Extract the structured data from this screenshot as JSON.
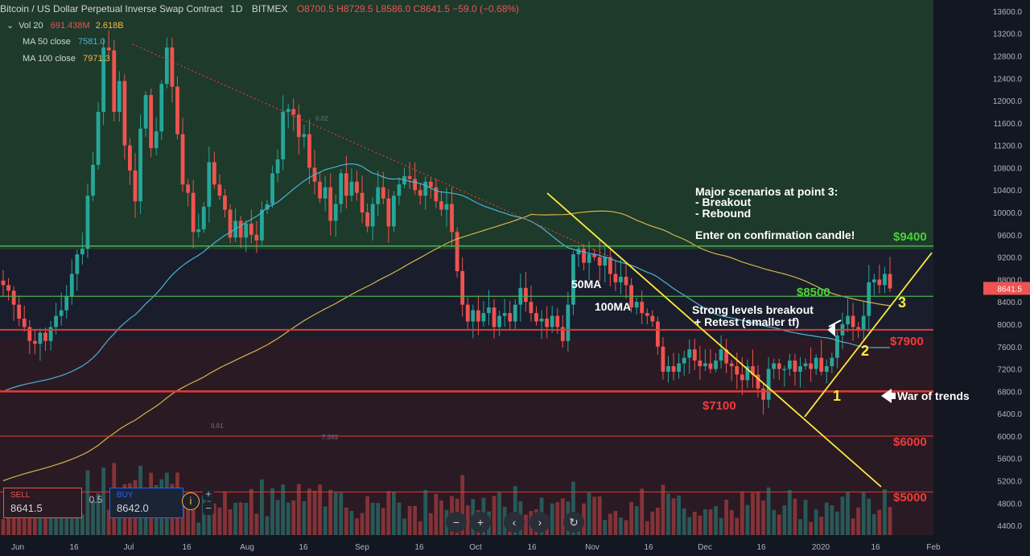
{
  "header": {
    "title": "Bitcoin / US Dollar Perpetual Inverse Swap Contract",
    "interval": "1D",
    "exchange": "BITMEX",
    "ohlc": "O8700.5  H8729.5  L8586.0  C8641.5  −59.0 (−0.68%)"
  },
  "indicators": [
    {
      "label": "Vol 20",
      "value1": "691.438M",
      "value2": "2.618B"
    },
    {
      "label": "MA 50 close",
      "value1": "7581.0"
    },
    {
      "label": "MA 100 close",
      "value1": "7971.3"
    }
  ],
  "trade_panel": {
    "sell_label": "SELL",
    "sell_price": "8641.5",
    "spread": "0.5",
    "buy_label": "BUY",
    "buy_price": "8642.0"
  },
  "price_axis": {
    "ticks": [
      "13600.0",
      "13200.0",
      "12800.0",
      "12400.0",
      "12000.0",
      "11600.0",
      "11200.0",
      "10800.0",
      "10400.0",
      "10000.0",
      "9600.0",
      "9200.0",
      "8800.0",
      "8400.0",
      "8000.0",
      "7600.0",
      "7200.0",
      "6800.0",
      "6400.0",
      "6000.0",
      "5600.0",
      "5200.0",
      "4800.0",
      "4400.0"
    ],
    "last_price": "8641.5"
  },
  "time_axis": {
    "labels": [
      "Jun",
      "16",
      "Jul",
      "16",
      "Aug",
      "16",
      "Sep",
      "16",
      "Oct",
      "16",
      "Nov",
      "16",
      "Dec",
      "16",
      "2020",
      "16",
      "Feb"
    ]
  },
  "annotations": {
    "scenario_title": "Major scenarios at point 3:",
    "scenario_1": "- Breakout",
    "scenario_2": "- Rebound",
    "enter_note": "Enter on confirmation candle!",
    "level_9400": "$9400",
    "level_8500": "$8500",
    "level_7900": "$7900",
    "level_7100": "$7100",
    "level_6000": "$6000",
    "level_5000": "$5000",
    "ma50_label": "50MA",
    "ma100_label": "100MA",
    "breakout_1": "Strong levels breakout",
    "breakout_2": "+ Retest (smaller tf)",
    "point_1": "1",
    "point_2": "2",
    "point_3": "3",
    "war_of_trends": "War of trends",
    "faint_1": "0.01",
    "faint_2": "7.363",
    "faint_3": "0.02"
  },
  "colors": {
    "up": "#26a69a",
    "down": "#ef5350",
    "ma50": "#4bb3d6",
    "ma100": "#d4b44a",
    "support": "#e53935",
    "resistance": "#4caf50",
    "trend": "#ffeb3b"
  },
  "chart_data": {
    "type": "candlestick",
    "title": "Bitcoin / US Dollar Perpetual Inverse Swap Contract",
    "interval": "1D",
    "ylim": [
      4200,
      13800
    ],
    "y_scale": "linear",
    "grid": false,
    "horizontal_levels": [
      9400,
      8500,
      7900,
      6800,
      6000,
      5000
    ],
    "closes": [
      8700,
      8600,
      8350,
      8100,
      7950,
      7700,
      7650,
      7850,
      7700,
      7950,
      8150,
      8250,
      8500,
      8900,
      9250,
      9350,
      10300,
      10850,
      11800,
      12950,
      12900,
      11800,
      12350,
      11200,
      10750,
      10200,
      11500,
      12100,
      11150,
      11450,
      12300,
      12950,
      12250,
      11400,
      10500,
      10350,
      9650,
      9700,
      10100,
      10900,
      10500,
      10300,
      10050,
      9550,
      9850,
      9550,
      9800,
      9600,
      9500,
      10050,
      10150,
      10700,
      10950,
      11800,
      11850,
      11750,
      11350,
      11400,
      10800,
      10550,
      10250,
      10450,
      9850,
      10150,
      10700,
      10300,
      10550,
      10350,
      10000,
      9750,
      10150,
      10450,
      10250,
      9750,
      10300,
      10500,
      10650,
      10600,
      10400,
      10300,
      10550,
      10450,
      10200,
      10050,
      10150,
      9650,
      8950,
      8350,
      8050,
      8250,
      8050,
      8200,
      8300,
      7950,
      8150,
      8200,
      8050,
      8350,
      8650,
      8400,
      8200,
      8050,
      8100,
      7950,
      8150,
      7950,
      7700,
      8350,
      9250,
      9350,
      9100,
      9250,
      9200,
      9050,
      9200,
      8900,
      8750,
      8850,
      8700,
      8300,
      8400,
      8200,
      8150,
      8050,
      7600,
      7150,
      7250,
      7150,
      7300,
      7400,
      7550,
      7350,
      7250,
      7300,
      7200,
      7350,
      7550,
      7300,
      7250,
      7100,
      7000,
      7250,
      7100,
      6850,
      6650,
      7200,
      7300,
      7200,
      7200,
      7350,
      7150,
      7250,
      7300,
      7200,
      7400,
      7150,
      7250,
      7400,
      7800,
      8000,
      8150,
      7950,
      7900,
      8150,
      8750,
      8800,
      8700,
      8900,
      8640
    ],
    "volume_scale": "relative"
  }
}
